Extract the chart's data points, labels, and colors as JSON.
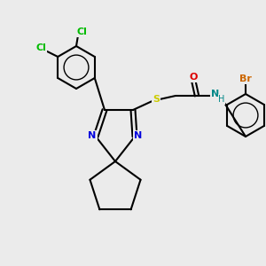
{
  "background_color": "#ebebeb",
  "atom_colors": {
    "C": "#000000",
    "N": "#0000dd",
    "O": "#dd0000",
    "S": "#cccc00",
    "Cl": "#00bb00",
    "Br": "#cc6600",
    "H": "#008888",
    "NH": "#008888"
  },
  "figsize": [
    3.0,
    3.0
  ],
  "dpi": 100
}
